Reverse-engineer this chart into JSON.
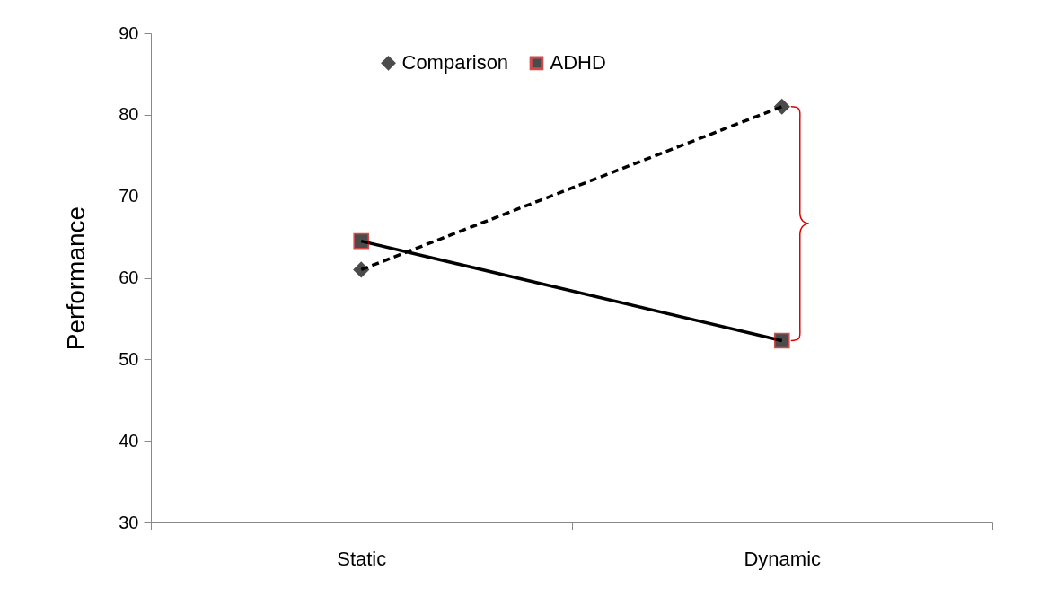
{
  "chart_data": {
    "type": "line",
    "ylabel": "Performance",
    "categories": [
      "Static",
      "Dynamic"
    ],
    "series": [
      {
        "name": "Comparison",
        "color": "#000000",
        "values": [
          61,
          81
        ],
        "marker": "diamond",
        "line_style": "dashed"
      },
      {
        "name": "ADHD",
        "color": "#000000",
        "values": [
          64.5,
          52.3
        ],
        "marker": "square",
        "line_style": "solid"
      }
    ],
    "ylim": [
      30,
      90
    ],
    "yticks": [
      30,
      40,
      50,
      60,
      70,
      80,
      90
    ],
    "grid": false,
    "legend": "top"
  }
}
